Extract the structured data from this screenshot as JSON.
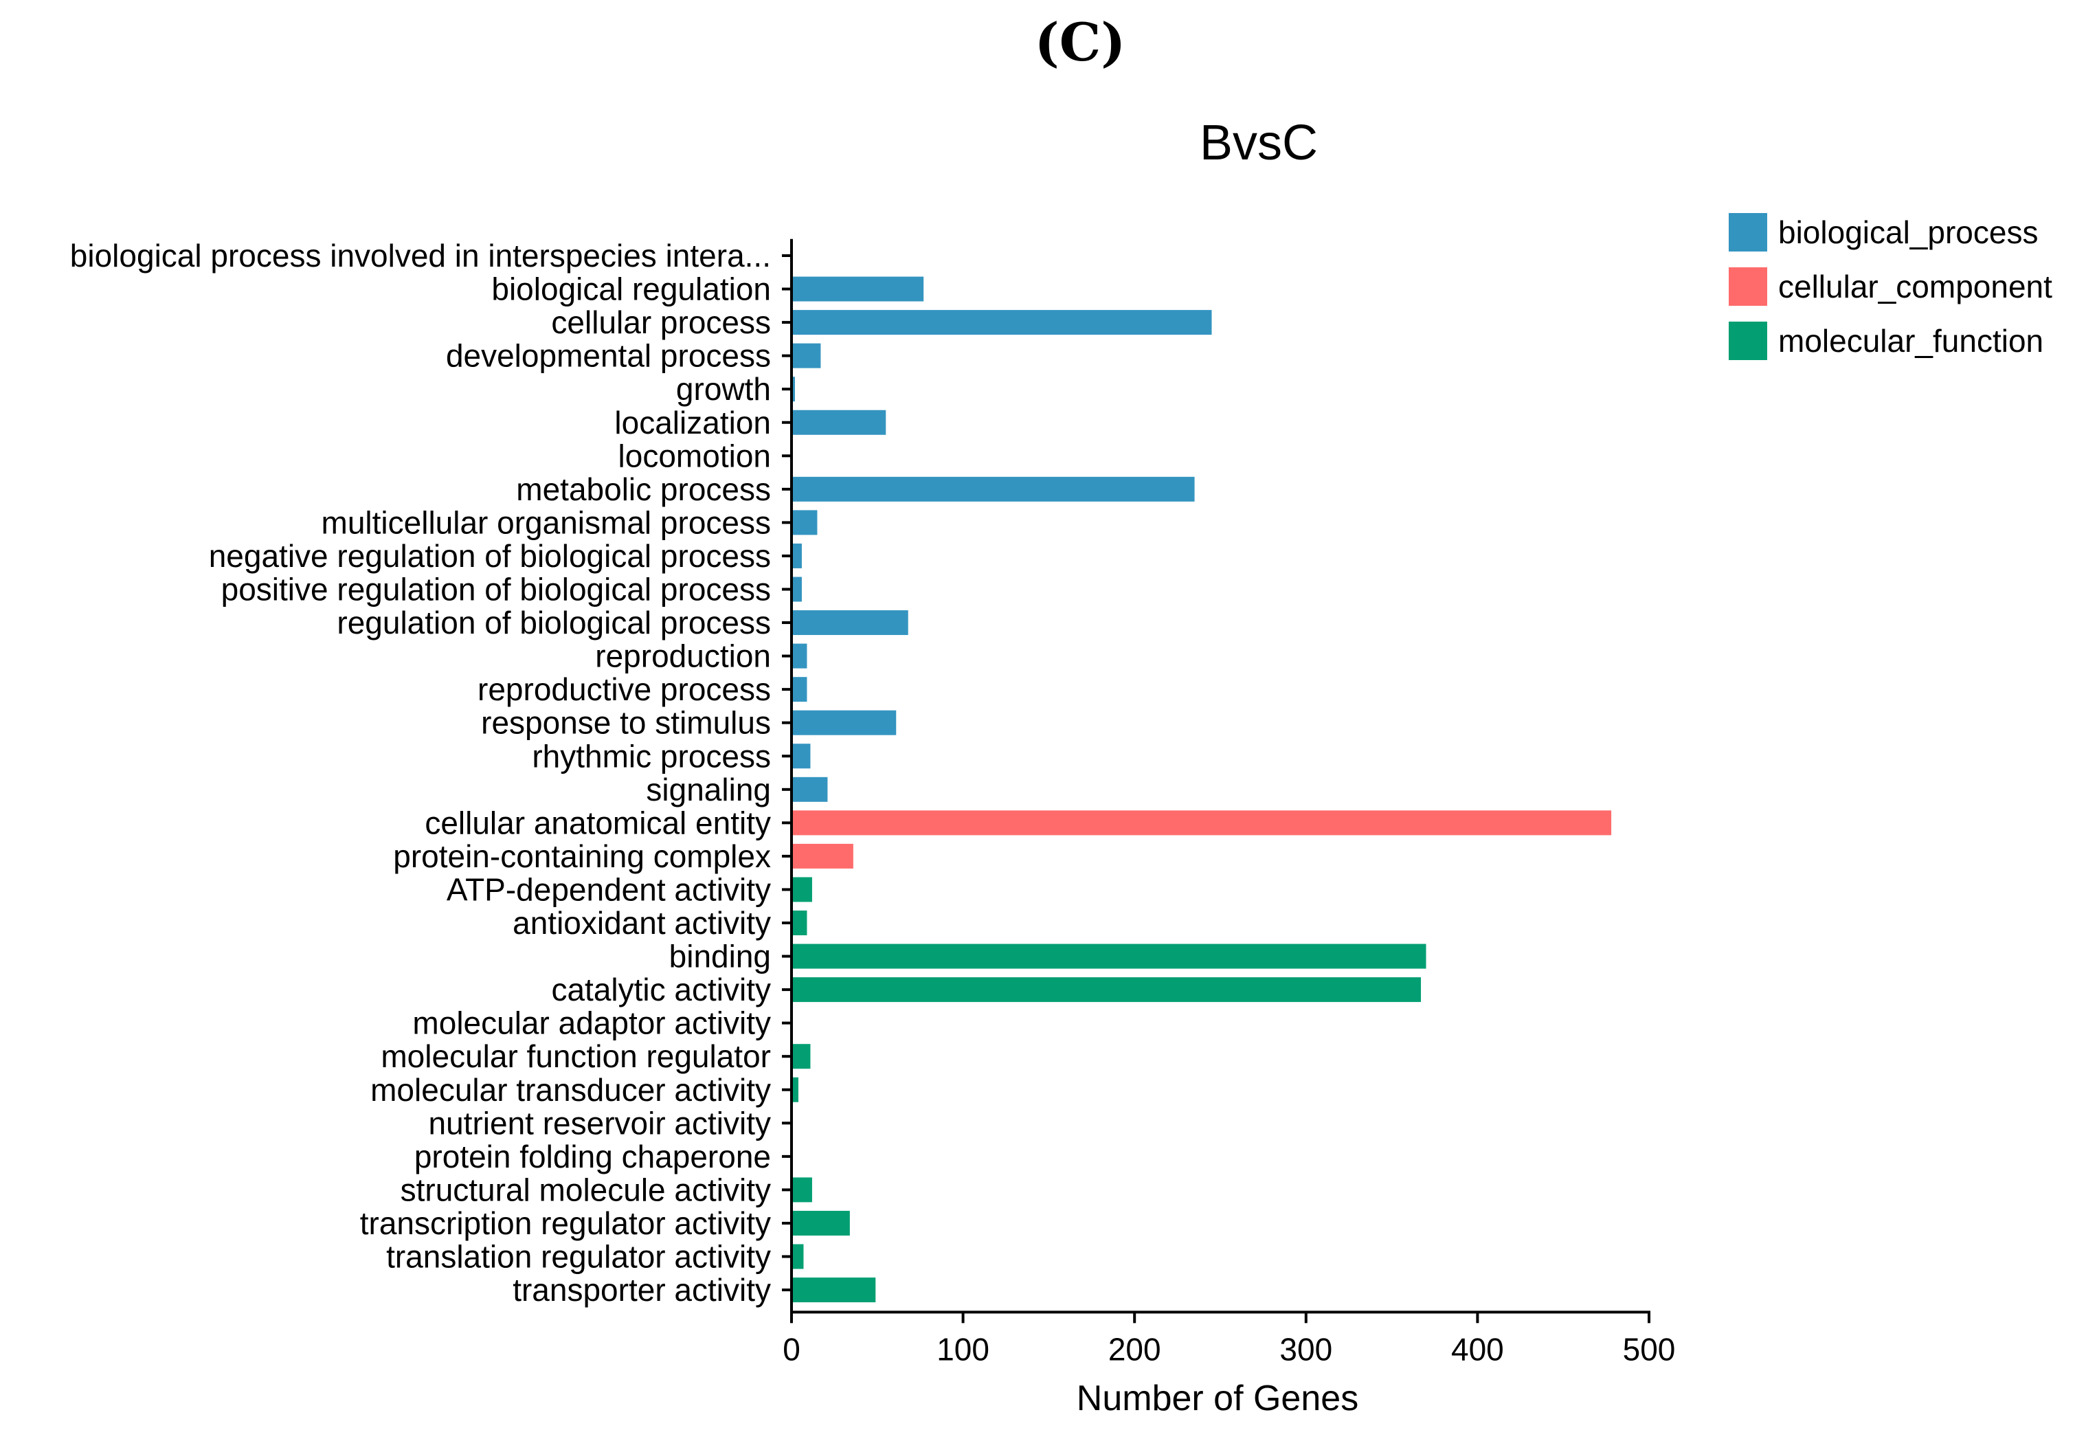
{
  "panel_label": "(C)",
  "colors": {
    "biological_process": "#3494c0",
    "cellular_component": "#ff6b6b",
    "molecular_function": "#039f73",
    "axis": "#000000"
  },
  "chart_data": {
    "type": "bar",
    "orientation": "horizontal",
    "title": "BvsC",
    "xlabel": "Number of Genes",
    "ylabel": "",
    "xlim": [
      0,
      500
    ],
    "xticks": [
      0,
      100,
      200,
      300,
      400,
      500
    ],
    "legend_position": "top-right",
    "legend": [
      {
        "key": "biological_process",
        "label": "biological_process"
      },
      {
        "key": "cellular_component",
        "label": "cellular_component"
      },
      {
        "key": "molecular_function",
        "label": "molecular_function"
      }
    ],
    "categories": [
      {
        "label": "biological process involved in interspecies intera...",
        "value": 0,
        "group": "biological_process"
      },
      {
        "label": "biological regulation",
        "value": 77,
        "group": "biological_process"
      },
      {
        "label": "cellular process",
        "value": 245,
        "group": "biological_process"
      },
      {
        "label": "developmental process",
        "value": 17,
        "group": "biological_process"
      },
      {
        "label": "growth",
        "value": 2,
        "group": "biological_process"
      },
      {
        "label": "localization",
        "value": 55,
        "group": "biological_process"
      },
      {
        "label": "locomotion",
        "value": 0,
        "group": "biological_process"
      },
      {
        "label": "metabolic process",
        "value": 235,
        "group": "biological_process"
      },
      {
        "label": "multicellular organismal process",
        "value": 15,
        "group": "biological_process"
      },
      {
        "label": "negative regulation of biological process",
        "value": 6,
        "group": "biological_process"
      },
      {
        "label": "positive regulation of biological process",
        "value": 6,
        "group": "biological_process"
      },
      {
        "label": "regulation of biological process",
        "value": 68,
        "group": "biological_process"
      },
      {
        "label": "reproduction",
        "value": 9,
        "group": "biological_process"
      },
      {
        "label": "reproductive process",
        "value": 9,
        "group": "biological_process"
      },
      {
        "label": "response to stimulus",
        "value": 61,
        "group": "biological_process"
      },
      {
        "label": "rhythmic process",
        "value": 11,
        "group": "biological_process"
      },
      {
        "label": "signaling",
        "value": 21,
        "group": "biological_process"
      },
      {
        "label": "cellular anatomical entity",
        "value": 478,
        "group": "cellular_component"
      },
      {
        "label": "protein-containing complex",
        "value": 36,
        "group": "cellular_component"
      },
      {
        "label": "ATP-dependent activity",
        "value": 12,
        "group": "molecular_function"
      },
      {
        "label": "antioxidant activity",
        "value": 9,
        "group": "molecular_function"
      },
      {
        "label": "binding",
        "value": 370,
        "group": "molecular_function"
      },
      {
        "label": "catalytic activity",
        "value": 367,
        "group": "molecular_function"
      },
      {
        "label": "molecular adaptor activity",
        "value": 0,
        "group": "molecular_function"
      },
      {
        "label": "molecular function regulator",
        "value": 11,
        "group": "molecular_function"
      },
      {
        "label": "molecular transducer activity",
        "value": 4,
        "group": "molecular_function"
      },
      {
        "label": "nutrient reservoir activity",
        "value": 0,
        "group": "molecular_function"
      },
      {
        "label": "protein folding chaperone",
        "value": 0,
        "group": "molecular_function"
      },
      {
        "label": "structural molecule activity",
        "value": 12,
        "group": "molecular_function"
      },
      {
        "label": "transcription regulator activity",
        "value": 34,
        "group": "molecular_function"
      },
      {
        "label": "translation regulator activity",
        "value": 7,
        "group": "molecular_function"
      },
      {
        "label": "transporter activity",
        "value": 49,
        "group": "molecular_function"
      }
    ]
  }
}
